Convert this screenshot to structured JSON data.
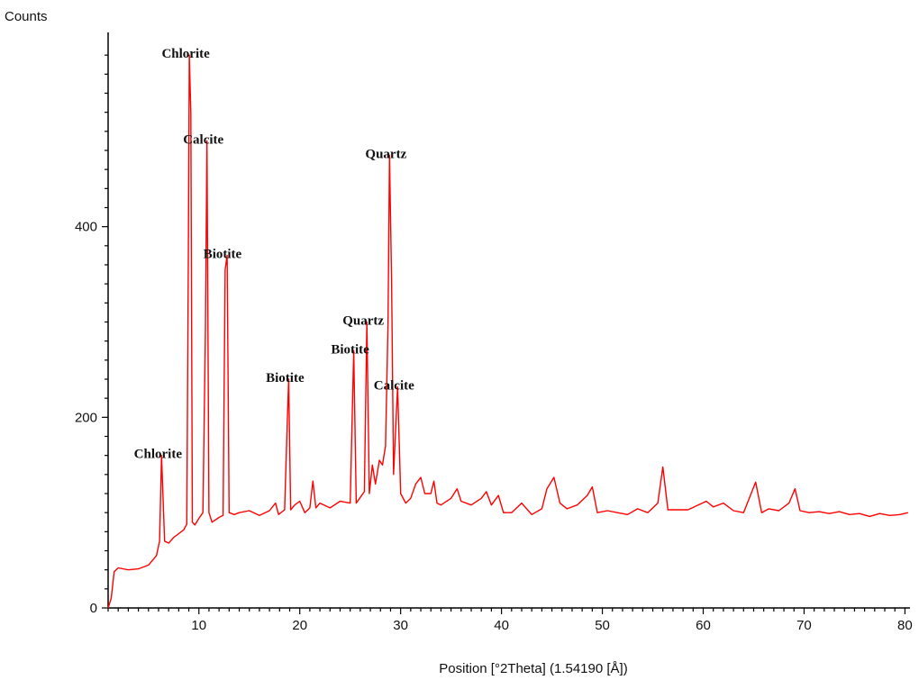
{
  "chart_data": {
    "type": "line",
    "title": "",
    "ylabel": "Counts",
    "xlabel": "Position [°2Theta] (1.54190 [Å])",
    "xlim": [
      1,
      80.5
    ],
    "ylim": [
      0,
      600
    ],
    "x_ticks": [
      10,
      20,
      30,
      40,
      50,
      60,
      70,
      80
    ],
    "y_ticks": [
      0,
      200,
      400
    ],
    "line_color": "#ff0000",
    "grid": false,
    "series": [
      {
        "points": [
          [
            1.0,
            0
          ],
          [
            1.3,
            10
          ],
          [
            1.6,
            38
          ],
          [
            2.0,
            42
          ],
          [
            3.0,
            40
          ],
          [
            4.0,
            41
          ],
          [
            5.0,
            45
          ],
          [
            5.8,
            55
          ],
          [
            6.1,
            70
          ],
          [
            6.3,
            160
          ],
          [
            6.6,
            70
          ],
          [
            7.0,
            68
          ],
          [
            7.5,
            74
          ],
          [
            8.0,
            78
          ],
          [
            8.5,
            82
          ],
          [
            8.8,
            88
          ],
          [
            8.95,
            360
          ],
          [
            9.05,
            580
          ],
          [
            9.2,
            520
          ],
          [
            9.35,
            90
          ],
          [
            9.6,
            87
          ],
          [
            10.0,
            94
          ],
          [
            10.4,
            100
          ],
          [
            10.65,
            290
          ],
          [
            10.8,
            490
          ],
          [
            11.0,
            100
          ],
          [
            11.3,
            90
          ],
          [
            12.0,
            95
          ],
          [
            12.4,
            97
          ],
          [
            12.6,
            355
          ],
          [
            12.8,
            370
          ],
          [
            13.0,
            100
          ],
          [
            13.5,
            98
          ],
          [
            14.0,
            100
          ],
          [
            15.0,
            102
          ],
          [
            16.0,
            97
          ],
          [
            17.0,
            102
          ],
          [
            17.6,
            110
          ],
          [
            17.9,
            98
          ],
          [
            18.5,
            103
          ],
          [
            18.75,
            190
          ],
          [
            18.9,
            240
          ],
          [
            19.1,
            103
          ],
          [
            19.5,
            108
          ],
          [
            20.0,
            112
          ],
          [
            20.5,
            100
          ],
          [
            21.0,
            105
          ],
          [
            21.3,
            133
          ],
          [
            21.6,
            105
          ],
          [
            22.0,
            110
          ],
          [
            23.0,
            105
          ],
          [
            24.0,
            112
          ],
          [
            25.0,
            110
          ],
          [
            25.35,
            270
          ],
          [
            25.6,
            110
          ],
          [
            26.0,
            116
          ],
          [
            26.4,
            122
          ],
          [
            26.65,
            300
          ],
          [
            26.9,
            120
          ],
          [
            27.2,
            150
          ],
          [
            27.5,
            130
          ],
          [
            27.9,
            155
          ],
          [
            28.2,
            150
          ],
          [
            28.5,
            170
          ],
          [
            28.75,
            300
          ],
          [
            28.9,
            475
          ],
          [
            29.1,
            345
          ],
          [
            29.3,
            140
          ],
          [
            29.7,
            232
          ],
          [
            30.0,
            120
          ],
          [
            30.5,
            110
          ],
          [
            31.0,
            115
          ],
          [
            31.5,
            130
          ],
          [
            32.0,
            137
          ],
          [
            32.4,
            120
          ],
          [
            33.0,
            120
          ],
          [
            33.3,
            133
          ],
          [
            33.6,
            110
          ],
          [
            34.0,
            108
          ],
          [
            35.0,
            115
          ],
          [
            35.6,
            125
          ],
          [
            36.0,
            112
          ],
          [
            37.0,
            108
          ],
          [
            38.0,
            115
          ],
          [
            38.5,
            122
          ],
          [
            39.0,
            108
          ],
          [
            39.7,
            118
          ],
          [
            40.2,
            100
          ],
          [
            41.0,
            100
          ],
          [
            42.0,
            110
          ],
          [
            43.0,
            98
          ],
          [
            44.0,
            104
          ],
          [
            44.5,
            125
          ],
          [
            45.2,
            137
          ],
          [
            45.8,
            110
          ],
          [
            46.5,
            104
          ],
          [
            47.5,
            108
          ],
          [
            48.5,
            118
          ],
          [
            49.0,
            127
          ],
          [
            49.5,
            100
          ],
          [
            50.5,
            102
          ],
          [
            51.5,
            100
          ],
          [
            52.5,
            98
          ],
          [
            53.5,
            104
          ],
          [
            54.5,
            100
          ],
          [
            55.5,
            110
          ],
          [
            56.0,
            148
          ],
          [
            56.5,
            103
          ],
          [
            57.5,
            103
          ],
          [
            58.5,
            103
          ],
          [
            59.5,
            108
          ],
          [
            60.3,
            112
          ],
          [
            61.0,
            106
          ],
          [
            62.0,
            110
          ],
          [
            63.0,
            102
          ],
          [
            64.0,
            100
          ],
          [
            65.2,
            132
          ],
          [
            65.8,
            100
          ],
          [
            66.5,
            104
          ],
          [
            67.5,
            102
          ],
          [
            68.5,
            110
          ],
          [
            69.1,
            125
          ],
          [
            69.6,
            102
          ],
          [
            70.5,
            100
          ],
          [
            71.5,
            101
          ],
          [
            72.5,
            99
          ],
          [
            73.5,
            101
          ],
          [
            74.5,
            98
          ],
          [
            75.5,
            99
          ],
          [
            76.5,
            96
          ],
          [
            77.5,
            99
          ],
          [
            78.5,
            97
          ],
          [
            79.5,
            98
          ],
          [
            80.3,
            100
          ]
        ]
      }
    ],
    "annotations": [
      {
        "text": "Chlorite",
        "x": 6.3,
        "y": 160
      },
      {
        "text": "Chlorite",
        "x": 9.05,
        "y": 580
      },
      {
        "text": "Calcite",
        "x": 10.8,
        "y": 490
      },
      {
        "text": "Biotite",
        "x": 12.7,
        "y": 370
      },
      {
        "text": "Biotite",
        "x": 18.9,
        "y": 240
      },
      {
        "text": "Biotite",
        "x": 25.35,
        "y": 270
      },
      {
        "text": "Quartz",
        "x": 26.65,
        "y": 300
      },
      {
        "text": "Quartz",
        "x": 28.9,
        "y": 475
      },
      {
        "text": "Calcite",
        "x": 29.7,
        "y": 232
      }
    ]
  }
}
